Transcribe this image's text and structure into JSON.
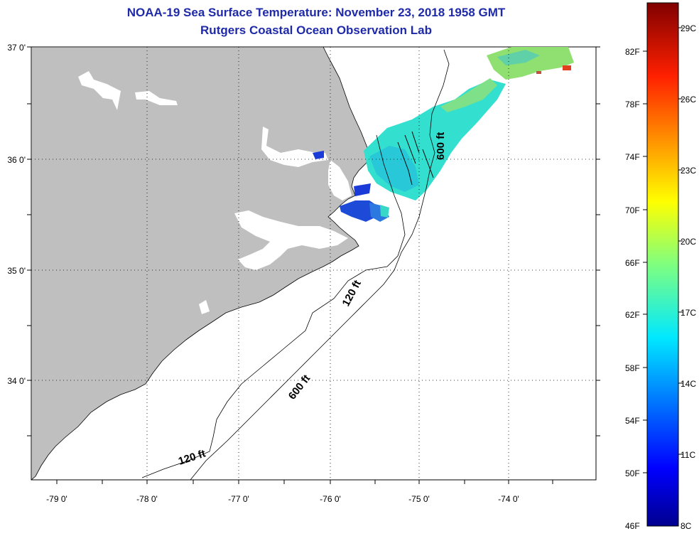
{
  "title": {
    "line1": "NOAA-19 Sea Surface Temperature:  November 23, 2018 1958 GMT",
    "line2": "Rutgers Coastal Ocean Observation Lab"
  },
  "map": {
    "lat_labels": [
      "37 0'",
      "36 0'",
      "35 0'",
      "34 0'"
    ],
    "lon_labels": [
      "-79 0'",
      "-78 0'",
      "-77 0'",
      "-76 0'",
      "-75 0'",
      "-74 0'"
    ],
    "land_color": "#bfbfbf",
    "contours": [
      {
        "label": "600 ft"
      },
      {
        "label": "120 ft"
      },
      {
        "label": "600 ft"
      },
      {
        "label": "120 ft"
      }
    ]
  },
  "colorbar": {
    "fahrenheit": [
      "82F",
      "78F",
      "74F",
      "70F",
      "66F",
      "62F",
      "58F",
      "54F",
      "50F",
      "46F"
    ],
    "celsius": [
      "29C",
      "26C",
      "23C",
      "20C",
      "17C",
      "14C",
      "11C",
      "8C"
    ]
  }
}
